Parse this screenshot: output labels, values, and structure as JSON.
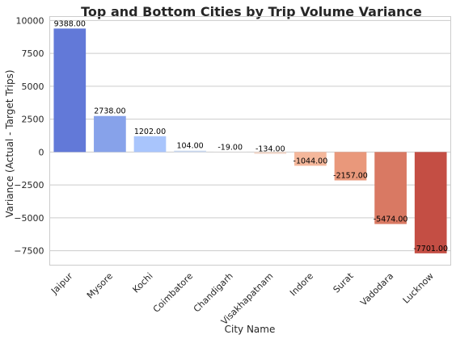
{
  "chart_data": {
    "type": "bar",
    "title": "Top  and Bottom Cities by Trip Volume Variance",
    "xlabel": "City Name",
    "ylabel": "Variance (Actual - Target Trips)",
    "ylim": [
      -8600,
      10300
    ],
    "yticks": [
      10000,
      7500,
      5000,
      2500,
      0,
      -2500,
      -5000,
      -7500
    ],
    "ytick_labels": [
      "10000",
      "7500",
      "5000",
      "2500",
      "0",
      "−2500",
      "−5000",
      "−7500"
    ],
    "grid": true,
    "categories": [
      "Jaipur",
      "Mysore",
      "Kochi",
      "Coimbatore",
      "Chandigarh",
      "Visakhapatnam",
      "Indore",
      "Surat",
      "Vadodara",
      "Lucknow"
    ],
    "values": [
      9388.0,
      2738.0,
      1202.0,
      104.0,
      -19.0,
      -134.0,
      -1044.0,
      -2157.0,
      -5474.0,
      -7701.0
    ],
    "value_labels": [
      "9388.00",
      "2738.00",
      "1202.00",
      "104.00",
      "-19.00",
      "-134.00",
      "-1044.00",
      "-2157.00",
      "-5474.00",
      "-7701.00"
    ],
    "colors": [
      "#6279d8",
      "#87a2ea",
      "#a9c5fc",
      "#c9d8f0",
      "#dddcdc",
      "#f1d5c7",
      "#f4b79b",
      "#e9987b",
      "#d97963",
      "#c44e44"
    ]
  }
}
